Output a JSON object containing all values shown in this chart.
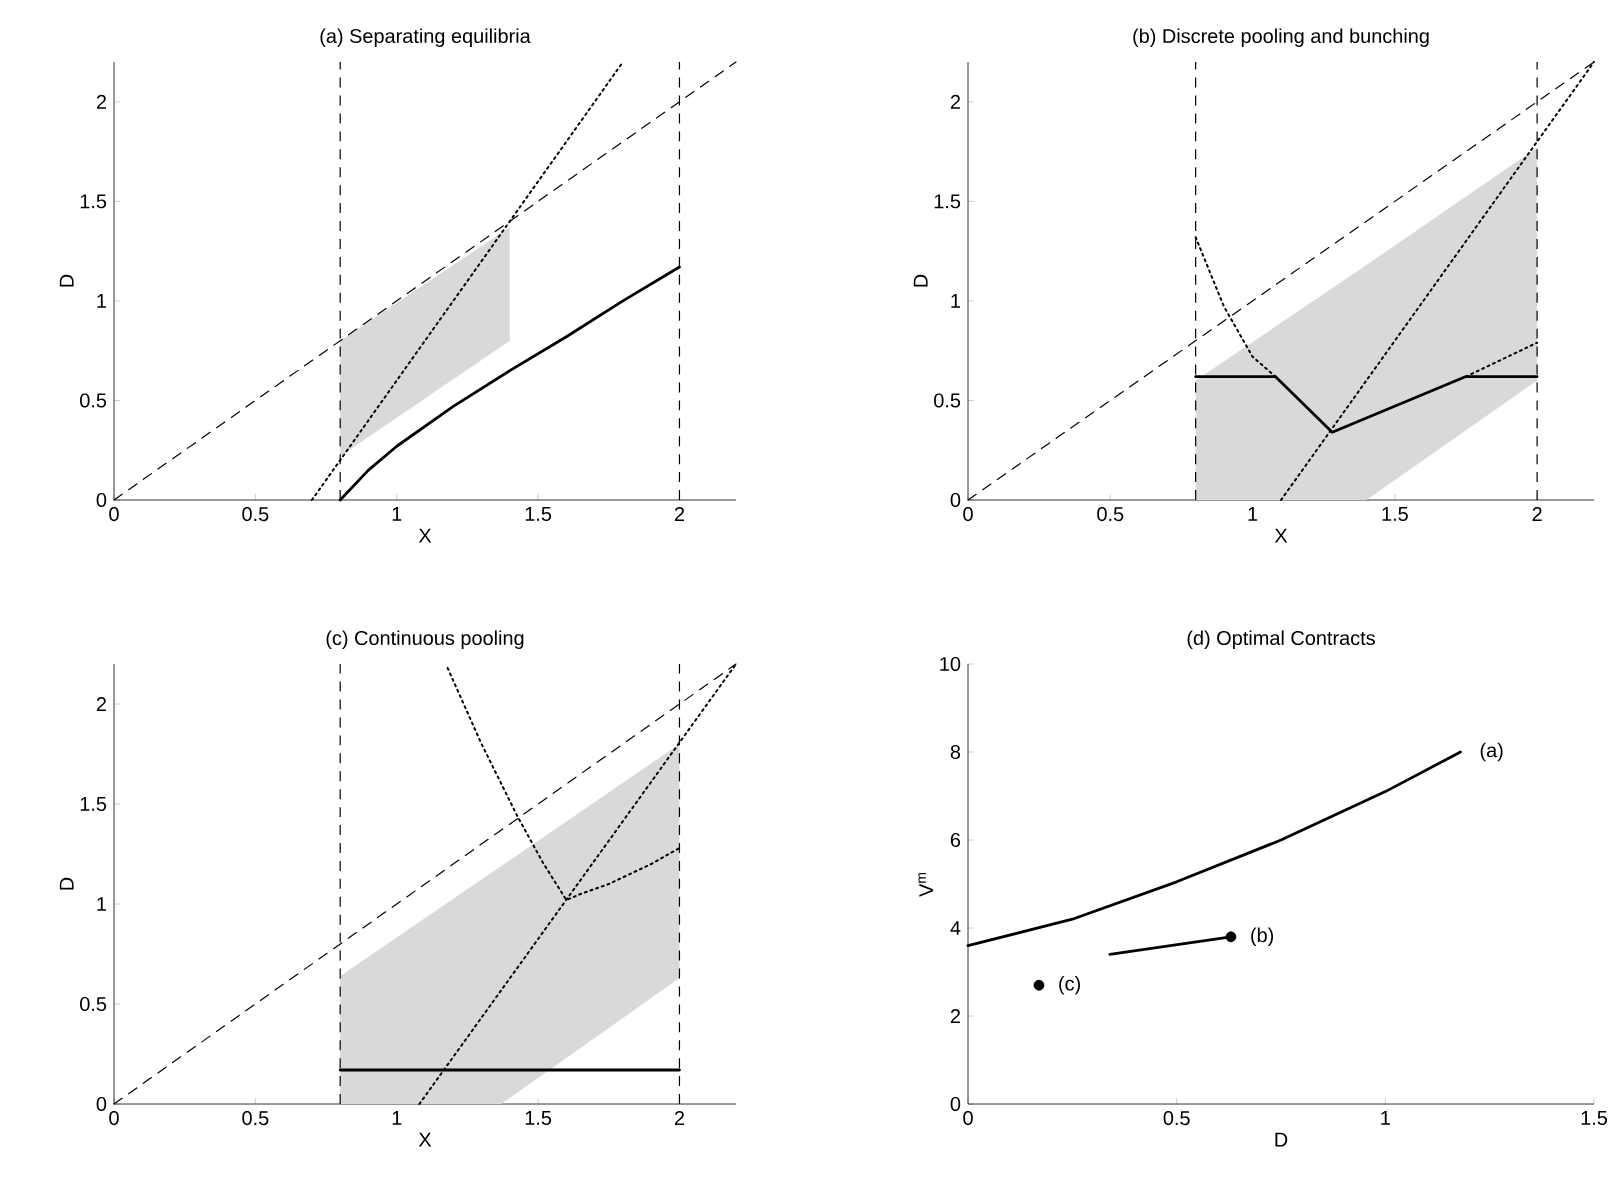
{
  "chart_data": [
    {
      "type": "line",
      "title": "(a) Separating equilibria",
      "xlabel": "X",
      "ylabel": "D",
      "xlim": [
        0,
        2.2
      ],
      "ylim": [
        0,
        2.2
      ],
      "xticks": [
        0,
        0.5,
        1,
        1.5,
        2
      ],
      "yticks": [
        0,
        0.5,
        1,
        1.5,
        2
      ],
      "ref_lines": [
        {
          "axis": "x",
          "value": 0.8,
          "line_style": "dashed"
        },
        {
          "axis": "x",
          "value": 2,
          "line_style": "dashed"
        }
      ],
      "series": [
        {
          "color": "#d9d9d9",
          "x": [
            0.8,
            1.4
          ],
          "values": [
            null,
            null
          ],
          "upper": [
            0.8,
            1.37
          ],
          "lower": [
            0.22,
            0.8
          ]
        },
        {
          "color": "#000000",
          "line_style": "dashed",
          "x": [
            0,
            2.2
          ],
          "values": [
            0,
            2.2
          ]
        },
        {
          "color": "#000000",
          "line_style": "dotted",
          "x": [
            0.7,
            1.8
          ],
          "values": [
            0,
            2.2
          ]
        },
        {
          "color": "#000000",
          "line_style": "solid",
          "x": [
            0.8,
            0.9,
            1.0,
            1.2,
            1.4,
            1.6,
            1.8,
            2.0
          ],
          "values": [
            0,
            0.15,
            0.27,
            0.47,
            0.65,
            0.82,
            1.0,
            1.17
          ]
        }
      ]
    },
    {
      "type": "line",
      "title": "(b) Discrete pooling and bunching",
      "xlabel": "X",
      "ylabel": "D",
      "xlim": [
        0,
        2.2
      ],
      "ylim": [
        0,
        2.2
      ],
      "xticks": [
        0,
        0.5,
        1,
        1.5,
        2
      ],
      "yticks": [
        0,
        0.5,
        1,
        1.5,
        2
      ],
      "ref_lines": [
        {
          "axis": "x",
          "value": 0.8,
          "line_style": "dashed"
        },
        {
          "axis": "x",
          "value": 2,
          "line_style": "dashed"
        }
      ],
      "series": [
        {
          "color": "#d9d9d9",
          "x": [
            0.8,
            1.4,
            2.0
          ],
          "values": [
            null,
            null,
            null
          ],
          "upper": [
            0.6,
            1.18,
            1.77
          ],
          "lower": [
            0,
            0,
            0.6
          ]
        },
        {
          "color": "#000000",
          "line_style": "dashed",
          "x": [
            0,
            2.2
          ],
          "values": [
            0,
            2.2
          ]
        },
        {
          "color": "#000000",
          "line_style": "dotted",
          "x": [
            1.1,
            2.2
          ],
          "values": [
            0,
            2.2
          ]
        },
        {
          "color": "#000000",
          "line_style": "dotted",
          "x": [
            0.8,
            0.9,
            1.0,
            1.08
          ],
          "values": [
            1.32,
            0.97,
            0.72,
            0.62
          ]
        },
        {
          "color": "#000000",
          "line_style": "dotted",
          "x": [
            1.75,
            2.0
          ],
          "values": [
            0.62,
            0.79
          ]
        },
        {
          "color": "#000000",
          "line_style": "solid",
          "x": [
            0.8,
            1.08,
            1.28,
            1.75,
            2.0
          ],
          "values": [
            0.62,
            0.62,
            0.34,
            0.62,
            0.62
          ]
        }
      ]
    },
    {
      "type": "line",
      "title": "(c) Continuous pooling",
      "xlabel": "X",
      "ylabel": "D",
      "xlim": [
        0,
        2.2
      ],
      "ylim": [
        0,
        2.2
      ],
      "xticks": [
        0,
        0.5,
        1,
        1.5,
        2
      ],
      "yticks": [
        0,
        0.5,
        1,
        1.5,
        2
      ],
      "ref_lines": [
        {
          "axis": "x",
          "value": 0.8,
          "line_style": "dashed"
        },
        {
          "axis": "x",
          "value": 2,
          "line_style": "dashed"
        }
      ],
      "series": [
        {
          "color": "#d9d9d9",
          "x": [
            0.8,
            1.37,
            2.0
          ],
          "values": [
            null,
            null,
            null
          ],
          "upper": [
            0.64,
            1.19,
            1.8
          ],
          "lower": [
            0,
            0,
            0.63
          ]
        },
        {
          "color": "#000000",
          "line_style": "dashed",
          "x": [
            0,
            2.2
          ],
          "values": [
            0,
            2.2
          ]
        },
        {
          "color": "#000000",
          "line_style": "dotted",
          "x": [
            1.08,
            2.2
          ],
          "values": [
            0,
            2.2
          ]
        },
        {
          "color": "#000000",
          "line_style": "dotted",
          "x": [
            1.18,
            1.3,
            1.43,
            1.52,
            1.6,
            1.65,
            1.75,
            1.9,
            2.0
          ],
          "values": [
            2.18,
            1.8,
            1.43,
            1.2,
            1.02,
            1.05,
            1.1,
            1.2,
            1.28
          ]
        },
        {
          "color": "#000000",
          "line_style": "solid",
          "x": [
            0.8,
            2.0
          ],
          "values": [
            0.17,
            0.17
          ]
        }
      ]
    },
    {
      "type": "line",
      "title": "(d) Optimal Contracts",
      "xlabel": "D",
      "ylabel": "V$^{m}$",
      "xlim": [
        0,
        1.5
      ],
      "ylim": [
        0,
        10
      ],
      "xticks": [
        0,
        0.5,
        1,
        1.5
      ],
      "yticks": [
        0,
        2,
        4,
        6,
        8,
        10
      ],
      "annotations": [
        {
          "text": "(a)",
          "x": 1.18,
          "y": 8.0
        },
        {
          "text": "(b)",
          "x": 0.63,
          "y": 3.8
        },
        {
          "text": "(c)",
          "x": 0.17,
          "y": 2.7
        }
      ],
      "series": [
        {
          "color": "#000000",
          "line_style": "solid",
          "x": [
            0,
            0.25,
            0.5,
            0.75,
            1.0,
            1.18
          ],
          "values": [
            3.6,
            4.2,
            5.05,
            6.0,
            7.1,
            8.0
          ]
        },
        {
          "color": "#000000",
          "line_style": "solid",
          "x": [
            0.34,
            0.63
          ],
          "values": [
            3.4,
            3.8
          ]
        },
        {
          "type": "scatter",
          "color": "#000000",
          "marker": "circle",
          "x": [
            0.63,
            0.17
          ],
          "values": [
            3.8,
            2.7
          ]
        }
      ]
    }
  ]
}
